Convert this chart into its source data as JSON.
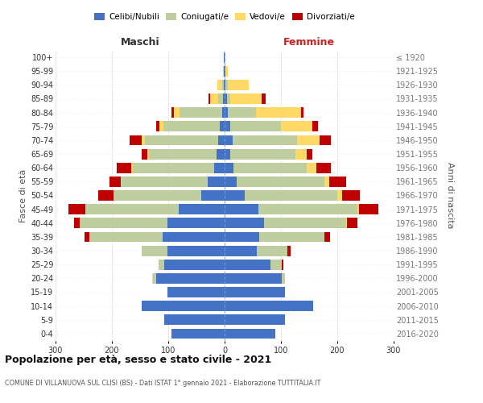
{
  "age_groups": [
    "0-4",
    "5-9",
    "10-14",
    "15-19",
    "20-24",
    "25-29",
    "30-34",
    "35-39",
    "40-44",
    "45-49",
    "50-54",
    "55-59",
    "60-64",
    "65-69",
    "70-74",
    "75-79",
    "80-84",
    "85-89",
    "90-94",
    "95-99",
    "100+"
  ],
  "birth_years": [
    "2016-2020",
    "2011-2015",
    "2006-2010",
    "2001-2005",
    "1996-2000",
    "1991-1995",
    "1986-1990",
    "1981-1985",
    "1976-1980",
    "1971-1975",
    "1966-1970",
    "1961-1965",
    "1956-1960",
    "1951-1955",
    "1946-1950",
    "1941-1945",
    "1936-1940",
    "1931-1935",
    "1926-1930",
    "1921-1925",
    "≤ 1920"
  ],
  "colors": {
    "celibe": "#4472C4",
    "coniugato": "#BECE9E",
    "vedovo": "#FFD966",
    "divorziato": "#C00000"
  },
  "maschi": {
    "celibe": [
      95,
      107,
      147,
      102,
      122,
      107,
      102,
      110,
      102,
      82,
      42,
      30,
      18,
      14,
      12,
      8,
      5,
      3,
      2,
      1,
      1
    ],
    "coniugato": [
      0,
      0,
      0,
      0,
      5,
      10,
      45,
      130,
      155,
      165,
      155,
      155,
      145,
      120,
      130,
      100,
      75,
      8,
      3,
      0,
      0
    ],
    "vedovo": [
      0,
      0,
      0,
      0,
      2,
      0,
      0,
      0,
      0,
      0,
      0,
      0,
      3,
      3,
      5,
      8,
      10,
      15,
      8,
      2,
      0
    ],
    "divorziato": [
      0,
      0,
      0,
      0,
      0,
      0,
      0,
      8,
      10,
      30,
      28,
      20,
      25,
      10,
      22,
      5,
      5,
      3,
      0,
      0,
      0
    ]
  },
  "femmine": {
    "celibe": [
      90,
      107,
      157,
      107,
      102,
      82,
      57,
      62,
      70,
      60,
      35,
      22,
      15,
      10,
      14,
      10,
      5,
      4,
      2,
      1,
      0
    ],
    "coniugato": [
      0,
      0,
      0,
      0,
      5,
      20,
      55,
      115,
      145,
      175,
      165,
      155,
      130,
      115,
      115,
      90,
      50,
      6,
      3,
      0,
      0
    ],
    "vedovo": [
      0,
      0,
      0,
      0,
      0,
      0,
      0,
      0,
      2,
      3,
      8,
      8,
      18,
      20,
      40,
      55,
      80,
      55,
      38,
      5,
      2
    ],
    "divorziato": [
      0,
      0,
      0,
      0,
      0,
      2,
      5,
      10,
      18,
      35,
      32,
      30,
      25,
      10,
      20,
      10,
      5,
      8,
      0,
      0,
      0
    ]
  },
  "title": "Popolazione per età, sesso e stato civile - 2021",
  "subtitle": "COMUNE DI VILLANUOVA SUL CLISI (BS) - Dati ISTAT 1° gennaio 2021 - Elaborazione TUTTITALIA.IT",
  "maschi_label": "Maschi",
  "femmine_label": "Femmine",
  "ylabel_left": "Fasce di età",
  "ylabel_right": "Anni di nascita",
  "xlim": 300,
  "legend_labels": [
    "Celibi/Nubili",
    "Coniugati/e",
    "Vedovi/e",
    "Divorziati/e"
  ],
  "bg_color": "#FFFFFF",
  "bar_height": 0.75
}
